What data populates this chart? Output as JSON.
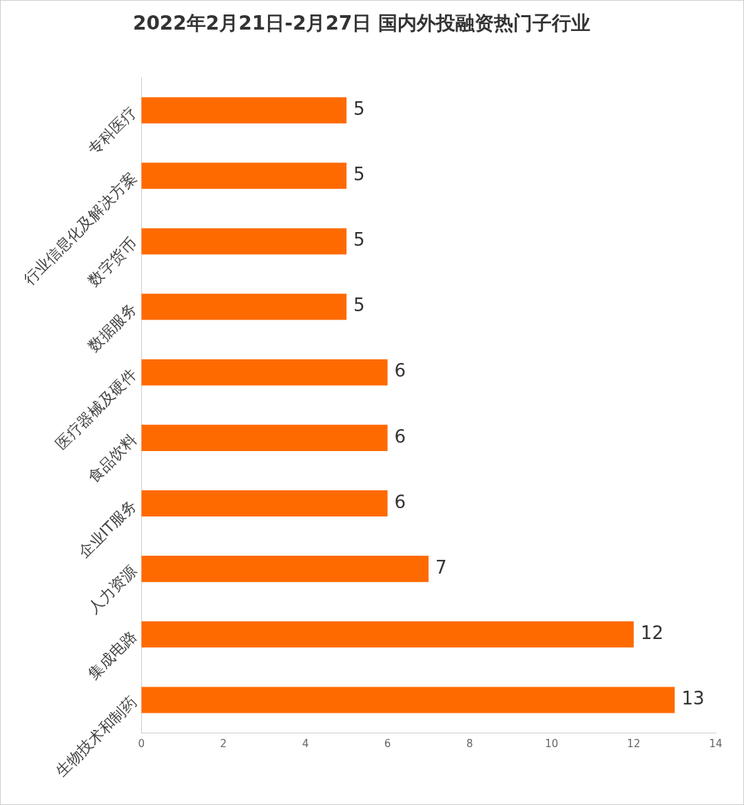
{
  "chart_data": {
    "type": "bar",
    "orientation": "horizontal",
    "title": "2022年2月21日-2月27日 国内外投融资热门子行业",
    "categories": [
      "专科医疗",
      "行业信息化及解决方案",
      "数字货币",
      "数据服务",
      "医疗器械及硬件",
      "食品饮料",
      "企业IT服务",
      "人力资源",
      "集成电路",
      "生物技术和制药"
    ],
    "values": [
      5,
      5,
      5,
      5,
      6,
      6,
      6,
      7,
      12,
      13
    ],
    "color": "#ff6a00",
    "xlim": [
      0,
      14
    ],
    "xticks": [
      0,
      2,
      4,
      6,
      8,
      10,
      12,
      14
    ],
    "grid": false,
    "data_labels": true
  }
}
